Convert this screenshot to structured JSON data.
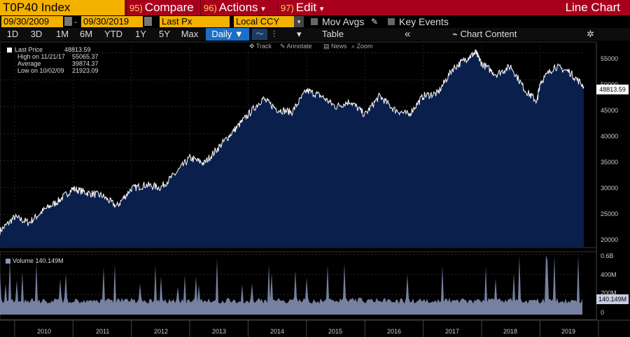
{
  "toolbar": {
    "ticker": "T0P40 Index",
    "compare_num": "95)",
    "compare_label": "Compare",
    "actions_num": "96)",
    "actions_label": "Actions",
    "edit_num": "97)",
    "edit_label": "Edit",
    "chart_title": "Line Chart",
    "dropdown_arrow": "▾"
  },
  "controls": {
    "start_date": "09/30/2009",
    "date_separator": "-",
    "end_date": "09/30/2019",
    "price_field": "Last Px",
    "currency": "Local CCY",
    "mov_avgs": "Mov Avgs",
    "key_events": "Key Events"
  },
  "periods": [
    "1D",
    "3D",
    "1M",
    "6M",
    "YTD",
    "1Y",
    "5Y",
    "Max"
  ],
  "frequency": "Daily ▼",
  "table_label": "Table",
  "collapse_label": "«",
  "chart_content_label": "Chart Content",
  "tools": {
    "track": "Track",
    "annotate": "Annotate",
    "news": "News",
    "zoom": "Zoom"
  },
  "legend": {
    "last_price_label": "Last Price",
    "last_price_value": "48813.59",
    "high_label": "High on 11/21/17",
    "high_value": "55065.37",
    "average_label": "Average",
    "average_value": "39874.37",
    "low_label": "Low on 10/02/09",
    "low_value": "21923.09"
  },
  "price_axis": [
    "55000",
    "50000",
    "45000",
    "40000",
    "35000",
    "30000",
    "25000",
    "20000"
  ],
  "last_price_tag": "48813.59",
  "volume": {
    "label": "Volume",
    "value": "140.149M",
    "axis": [
      "0.6B",
      "400M",
      "200M",
      "0"
    ],
    "last_tag": "140.149M"
  },
  "years": [
    "2010",
    "2011",
    "2012",
    "2013",
    "2014",
    "2015",
    "2016",
    "2017",
    "2018",
    "2019"
  ],
  "colors": {
    "area_fill": "#0b1f4c",
    "line": "#ffffff",
    "volume_fill": "#8b96bd",
    "accent": "#f3b100",
    "bar_red": "#a8001c"
  },
  "chart_data": [
    {
      "type": "area",
      "x": [
        2009.75,
        2010.0,
        2010.25,
        2010.5,
        2010.75,
        2011.0,
        2011.25,
        2011.5,
        2011.75,
        2012.0,
        2012.25,
        2012.5,
        2012.75,
        2013.0,
        2013.25,
        2013.5,
        2013.75,
        2014.0,
        2014.25,
        2014.5,
        2014.75,
        2015.0,
        2015.25,
        2015.5,
        2015.75,
        2016.0,
        2016.25,
        2016.5,
        2016.75,
        2017.0,
        2017.25,
        2017.5,
        2017.75,
        2017.9,
        2018.0,
        2018.25,
        2018.5,
        2018.75,
        2018.95,
        2019.0,
        2019.25,
        2019.5,
        2019.75
      ],
      "values": [
        21923,
        24500,
        23500,
        25800,
        27500,
        29800,
        29000,
        28500,
        26500,
        29800,
        30500,
        30000,
        32500,
        35500,
        34500,
        37500,
        40500,
        43500,
        46500,
        44500,
        44000,
        48000,
        47000,
        45000,
        46000,
        43500,
        47000,
        44500,
        43500,
        47000,
        47500,
        52000,
        54000,
        55065,
        53000,
        51000,
        52500,
        48000,
        46000,
        49500,
        52500,
        51500,
        48813
      ],
      "title": "",
      "xlabel": "",
      "ylabel": "",
      "ylim": [
        19000,
        56500
      ],
      "grid": true,
      "legend": "top-left"
    },
    {
      "type": "area",
      "series": [
        {
          "name": "Volume",
          "last_value": "140.149M"
        }
      ],
      "ylim": [
        0,
        600
      ],
      "yunit": "M",
      "grid": true
    }
  ]
}
